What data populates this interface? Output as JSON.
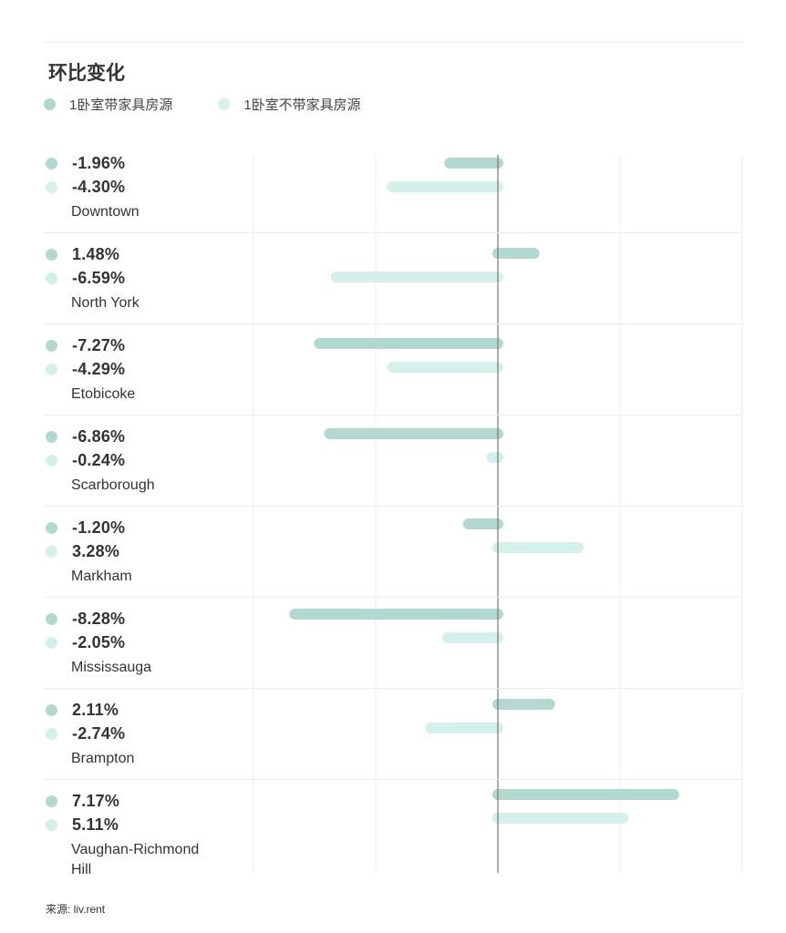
{
  "title": "环比变化",
  "legend": [
    {
      "label": "1卧室带家具房源",
      "color": "#b2d9d0"
    },
    {
      "label": "1卧室不带家具房源",
      "color": "#d3f0ea"
    }
  ],
  "source": "来源: liv.rent",
  "chart_data": {
    "type": "bar",
    "orientation": "horizontal",
    "title": "环比变化",
    "unit": "%",
    "grid": true,
    "legend_position": "top-left",
    "categories": [
      "Downtown",
      "North York",
      "Etobicoke",
      "Scarborough",
      "Markham",
      "Mississauga",
      "Brampton",
      "Vaughan-Richmond Hill"
    ],
    "series": [
      {
        "name": "1卧室带家具房源",
        "color": "#b2d9d0",
        "values": [
          -1.96,
          1.48,
          -7.27,
          -6.86,
          -1.2,
          -8.28,
          2.11,
          7.17
        ]
      },
      {
        "name": "1卧室不带家具房源",
        "color": "#d3f0ea",
        "values": [
          -4.3,
          -6.59,
          -4.29,
          -0.24,
          3.28,
          -2.05,
          -2.74,
          5.11
        ]
      }
    ],
    "value_labels": [
      [
        "-1.96%",
        "-4.30%"
      ],
      [
        "1.48%",
        "-6.59%"
      ],
      [
        "-7.27%",
        "-4.29%"
      ],
      [
        "-6.86%",
        "-0.24%"
      ],
      [
        "-1.20%",
        "3.28%"
      ],
      [
        "-8.28%",
        "-2.05%"
      ],
      [
        "2.11%",
        "-2.74%"
      ],
      [
        "7.17%",
        "5.11%"
      ]
    ],
    "xlim": [
      -10,
      10
    ]
  }
}
